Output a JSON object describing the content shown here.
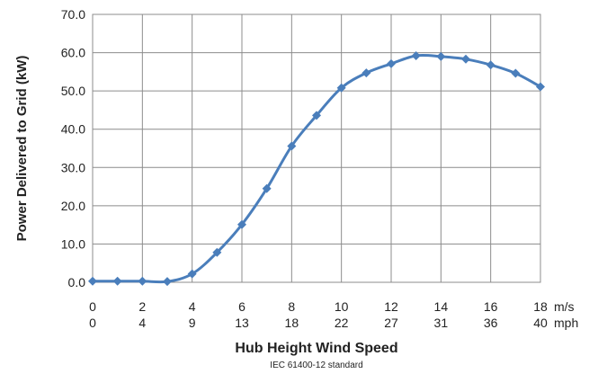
{
  "chart_data": {
    "type": "line",
    "x": [
      0,
      1,
      2,
      3,
      4,
      5,
      6,
      7,
      8,
      9,
      10,
      11,
      12,
      13,
      14,
      15,
      16,
      17,
      18
    ],
    "series": [
      {
        "values": [
          0.3,
          0.3,
          0.3,
          0.2,
          2.2,
          7.8,
          15.1,
          24.5,
          35.6,
          43.6,
          50.8,
          54.7,
          57.1,
          59.2,
          59.0,
          58.3,
          56.8,
          54.6,
          51.1
        ]
      }
    ],
    "color": "#4a7ebb",
    "ylim": [
      0,
      70
    ],
    "yticks": [
      "0.0",
      "10.0",
      "20.0",
      "30.0",
      "40.0",
      "50.0",
      "60.0",
      "70.0"
    ],
    "xticks_ms": [
      "0",
      "2",
      "4",
      "6",
      "8",
      "10",
      "12",
      "14",
      "16",
      "18"
    ],
    "xticks_mph": [
      "0",
      "4",
      "9",
      "13",
      "18",
      "22",
      "27",
      "31",
      "36",
      "40"
    ],
    "unit_ms": "m/s",
    "unit_mph": "mph",
    "ylabel": "Power Delivered to Grid (kW)",
    "xlabel": "Hub Height Wind Speed",
    "note": "IEC 61400-12 standard",
    "grid": true
  }
}
